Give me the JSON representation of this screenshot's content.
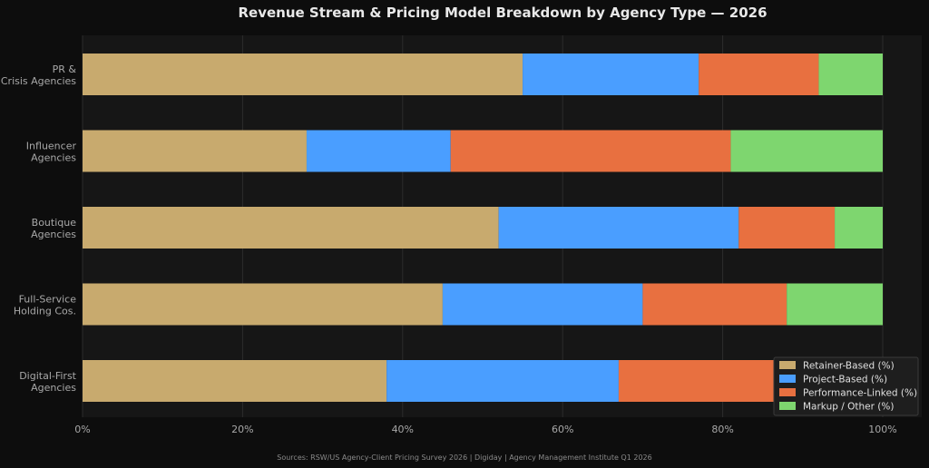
{
  "chart_data": {
    "type": "bar",
    "orientation": "horizontal",
    "stacked": true,
    "title": "Revenue Stream & Pricing Model Breakdown by Agency Type — 2026",
    "categories": [
      [
        "PR &",
        "Crisis Agencies"
      ],
      [
        "Influencer",
        "Agencies"
      ],
      [
        "Boutique",
        "Agencies"
      ],
      [
        "Full-Service",
        "Holding Cos."
      ],
      [
        "Digital-First",
        "Agencies"
      ]
    ],
    "series": [
      {
        "name": "Retainer-Based (%)",
        "color": "#c8aa6e",
        "values": [
          55,
          28,
          52,
          45,
          38
        ]
      },
      {
        "name": "Project-Based (%)",
        "color": "#4a9eff",
        "values": [
          22,
          18,
          30,
          25,
          29
        ]
      },
      {
        "name": "Performance-Linked (%)",
        "color": "#e87040",
        "values": [
          15,
          35,
          12,
          18,
          21
        ]
      },
      {
        "name": "Markup / Other (%)",
        "color": "#7ed66f",
        "values": [
          8,
          19,
          6,
          12,
          12
        ]
      }
    ],
    "xlim": [
      0,
      100
    ],
    "xticks": [
      0,
      20,
      40,
      60,
      80,
      100
    ],
    "xtick_labels": [
      "0%",
      "20%",
      "40%",
      "60%",
      "80%",
      "100%"
    ],
    "grid": "vertical",
    "legend_position": "bottom-right",
    "source_note": "Sources: RSW/US Agency-Client Pricing Survey 2026 | Digiday | Agency Management Institute Q1 2026"
  },
  "colors": {
    "background": "#0d0d0d",
    "plot_background": "#161616",
    "grid": "#2c2c2c"
  }
}
